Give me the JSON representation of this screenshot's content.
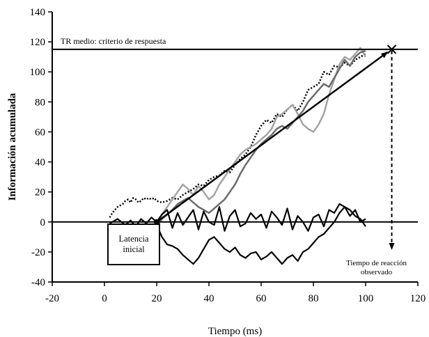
{
  "chart_data": {
    "type": "line",
    "xlabel": "Tiempo (ms)",
    "ylabel": "Información acumulada",
    "xlim": [
      -20,
      120
    ],
    "ylim": [
      -40,
      140
    ],
    "xticks": [
      -20,
      0,
      20,
      40,
      60,
      80,
      100,
      120
    ],
    "yticks": [
      -40,
      -20,
      0,
      20,
      40,
      60,
      80,
      100,
      120,
      140
    ],
    "grid": false,
    "threshold": {
      "y": 115,
      "label": "TR medio: criterio de respuesta"
    },
    "annotations": {
      "latency_box": [
        "Latencia",
        "inicial"
      ],
      "reaction_time": [
        "Tiempo de reacción",
        "observado"
      ]
    },
    "mean_drift": {
      "x": [
        20,
        110
      ],
      "y": [
        0,
        115
      ]
    },
    "reaction_time_x": 110,
    "series": [
      {
        "style": "dotted-black",
        "x": [
          2,
          3,
          4,
          5,
          6,
          7,
          8,
          9,
          10,
          11,
          12,
          13,
          14,
          15,
          16,
          17,
          18,
          19,
          20,
          22,
          24,
          26,
          28,
          30,
          32,
          34,
          36,
          38,
          40,
          42,
          44,
          46,
          48,
          50,
          52,
          54,
          56,
          58,
          60,
          62,
          64,
          66,
          68,
          70,
          72,
          74,
          76,
          78,
          80,
          82,
          84,
          86,
          88,
          90,
          92,
          94,
          96,
          98,
          100
        ],
        "y": [
          3,
          6,
          8,
          10,
          11,
          12,
          14,
          15,
          13,
          16,
          15,
          13,
          14,
          16,
          15,
          16,
          15,
          16,
          14,
          13,
          14,
          16,
          15,
          18,
          20,
          22,
          25,
          24,
          28,
          30,
          31,
          34,
          33,
          38,
          42,
          45,
          50,
          58,
          64,
          68,
          66,
          72,
          70,
          75,
          78,
          74,
          80,
          88,
          90,
          92,
          100,
          98,
          104,
          103,
          106,
          104,
          108,
          110,
          112
        ]
      },
      {
        "style": "light-gray",
        "x": [
          20,
          22,
          24,
          26,
          28,
          30,
          32,
          34,
          36,
          38,
          40,
          42,
          44,
          46,
          48,
          50,
          52,
          54,
          56,
          58,
          60,
          62,
          64,
          66,
          68,
          70,
          72,
          74,
          76,
          78,
          80,
          82,
          84,
          86,
          88,
          90,
          92,
          94,
          96,
          98,
          100
        ],
        "y": [
          -2,
          5,
          10,
          15,
          20,
          25,
          22,
          18,
          24,
          20,
          15,
          18,
          25,
          30,
          35,
          40,
          45,
          48,
          50,
          52,
          55,
          58,
          62,
          70,
          72,
          75,
          78,
          72,
          65,
          62,
          60,
          65,
          72,
          85,
          95,
          105,
          110,
          108,
          112,
          116,
          110
        ]
      },
      {
        "style": "dark-gray",
        "x": [
          20,
          22,
          24,
          26,
          28,
          30,
          32,
          34,
          36,
          38,
          40,
          42,
          44,
          46,
          48,
          50,
          52,
          54,
          56,
          58,
          60,
          62,
          64,
          66,
          68,
          70,
          72,
          74,
          76,
          78,
          80,
          82,
          84,
          86,
          88,
          90,
          92,
          94,
          96,
          98,
          100
        ],
        "y": [
          -3,
          2,
          5,
          8,
          12,
          14,
          16,
          13,
          10,
          8,
          6,
          9,
          12,
          15,
          20,
          25,
          32,
          38,
          43,
          48,
          52,
          55,
          58,
          62,
          64,
          62,
          66,
          70,
          74,
          80,
          84,
          88,
          92,
          90,
          96,
          102,
          108,
          104,
          110,
          113,
          114
        ]
      },
      {
        "style": "black",
        "x": [
          2,
          5,
          8,
          10,
          12,
          14,
          16,
          18,
          20,
          22,
          24,
          26,
          28,
          30,
          32,
          34,
          36,
          38,
          40,
          42,
          44,
          46,
          48,
          50,
          52,
          54,
          56,
          58,
          60,
          62,
          64,
          66,
          68,
          70,
          72,
          74,
          76,
          78,
          80,
          82,
          84,
          86,
          88,
          90,
          92,
          94,
          96,
          98,
          100
        ],
        "y": [
          -1,
          2,
          -2,
          1,
          -3,
          2,
          -1,
          3,
          0,
          5,
          8,
          -4,
          6,
          -2,
          3,
          8,
          -5,
          7,
          0,
          -2,
          10,
          -6,
          4,
          8,
          -3,
          -1,
          6,
          2,
          5,
          -4,
          7,
          3,
          -2,
          9,
          -5,
          4,
          0,
          -6,
          3,
          5,
          -3,
          8,
          6,
          12,
          10,
          4,
          8,
          0,
          2
        ]
      },
      {
        "style": "black",
        "x": [
          20,
          22,
          24,
          26,
          28,
          30,
          32,
          34,
          36,
          38,
          40,
          42,
          44,
          46,
          48,
          50,
          52,
          54,
          56,
          58,
          60,
          62,
          64,
          66,
          68,
          70,
          72,
          74,
          76,
          78,
          80,
          82,
          84,
          86,
          88,
          90,
          92,
          94,
          96,
          98,
          100
        ],
        "y": [
          -2,
          -10,
          -15,
          -16,
          -18,
          -22,
          -25,
          -28,
          -24,
          -18,
          -12,
          -10,
          -14,
          -18,
          -20,
          -17,
          -22,
          -24,
          -21,
          -20,
          -25,
          -23,
          -20,
          -24,
          -28,
          -24,
          -22,
          -26,
          -20,
          -18,
          -14,
          -10,
          -8,
          -4,
          0,
          6,
          10,
          8,
          4,
          2,
          -3
        ]
      }
    ]
  }
}
